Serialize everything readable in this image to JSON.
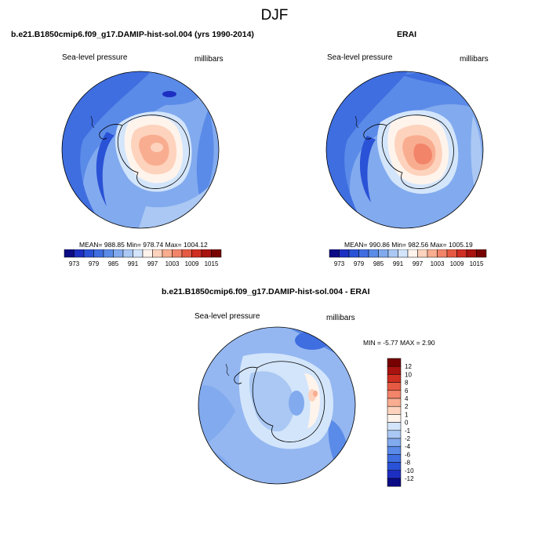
{
  "figure": {
    "season": "DJF"
  },
  "panels": [
    {
      "title": "b.e21.B1850cmip6.f09_g17.DAMIP-hist-sol.004 (yrs 1990-2014)",
      "variable": "Sea-level pressure",
      "units": "millibars",
      "stats": "MEAN= 988.85  Min= 978.74  Max= 1004.12"
    },
    {
      "title": "ERAI",
      "variable": "Sea-level pressure",
      "units": "millibars",
      "stats": "MEAN= 990.86  Min= 982.56  Max= 1005.19"
    },
    {
      "title": "b.e21.B1850cmip6.f09_g17.DAMIP-hist-sol.004 - ERAI",
      "variable": "Sea-level pressure",
      "units": "millibars",
      "stats": "MIN =  -5.77 MAX =   2.90"
    }
  ],
  "chart_data": [
    {
      "type": "heatmap",
      "projection": "south-polar-stereographic",
      "title": "b.e21.B1850cmip6.f09_g17.DAMIP-hist-sol.004 (yrs 1990-2014)",
      "units": "millibars",
      "mean": 988.85,
      "min": 978.74,
      "max": 1004.12,
      "colorbar": {
        "orientation": "horizontal",
        "levels": [
          973,
          976,
          979,
          982,
          985,
          988,
          991,
          994,
          997,
          1000,
          1003,
          1006,
          1009,
          1012,
          1015
        ],
        "tick_labels": [
          "973",
          "979",
          "985",
          "991",
          "997",
          "1003",
          "1009",
          "1015"
        ],
        "colors": [
          "#0b0b86",
          "#1d2fc2",
          "#2a52d6",
          "#3f6ee0",
          "#5b8be8",
          "#82aaee",
          "#aac8f3",
          "#d3e5fb",
          "#fff4ec",
          "#fdd3bd",
          "#f9ad90",
          "#f2846a",
          "#e65a43",
          "#cf2f22",
          "#a8120f",
          "#770101"
        ]
      }
    },
    {
      "type": "heatmap",
      "projection": "south-polar-stereographic",
      "title": "ERAI",
      "units": "millibars",
      "mean": 990.86,
      "min": 982.56,
      "max": 1005.19,
      "colorbar": {
        "orientation": "horizontal",
        "levels": [
          973,
          976,
          979,
          982,
          985,
          988,
          991,
          994,
          997,
          1000,
          1003,
          1006,
          1009,
          1012,
          1015
        ],
        "tick_labels": [
          "973",
          "979",
          "985",
          "991",
          "997",
          "1003",
          "1009",
          "1015"
        ],
        "colors": [
          "#0b0b86",
          "#1d2fc2",
          "#2a52d6",
          "#3f6ee0",
          "#5b8be8",
          "#82aaee",
          "#aac8f3",
          "#d3e5fb",
          "#fff4ec",
          "#fdd3bd",
          "#f9ad90",
          "#f2846a",
          "#e65a43",
          "#cf2f22",
          "#a8120f",
          "#770101"
        ]
      }
    },
    {
      "type": "heatmap",
      "projection": "south-polar-stereographic",
      "title": "b.e21.B1850cmip6.f09_g17.DAMIP-hist-sol.004 - ERAI",
      "units": "millibars",
      "min": -5.77,
      "max": 2.9,
      "colorbar": {
        "orientation": "vertical",
        "levels": [
          -12,
          -10,
          -8,
          -6,
          -4,
          -2,
          -1,
          0,
          1,
          2,
          4,
          6,
          8,
          10,
          12
        ],
        "tick_labels": [
          "-12",
          "-10",
          "-8",
          "-6",
          "-4",
          "-2",
          "-1",
          "0",
          "1",
          "2",
          "4",
          "6",
          "8",
          "10",
          "12"
        ],
        "colors": [
          "#0b0b86",
          "#1d2fc2",
          "#2a52d6",
          "#3f6ee0",
          "#5b8be8",
          "#82aaee",
          "#aac8f3",
          "#d3e5fb",
          "#fff4ec",
          "#fdd3bd",
          "#f9ad90",
          "#f2846a",
          "#e65a43",
          "#cf2f22",
          "#a8120f",
          "#770101"
        ]
      }
    }
  ]
}
